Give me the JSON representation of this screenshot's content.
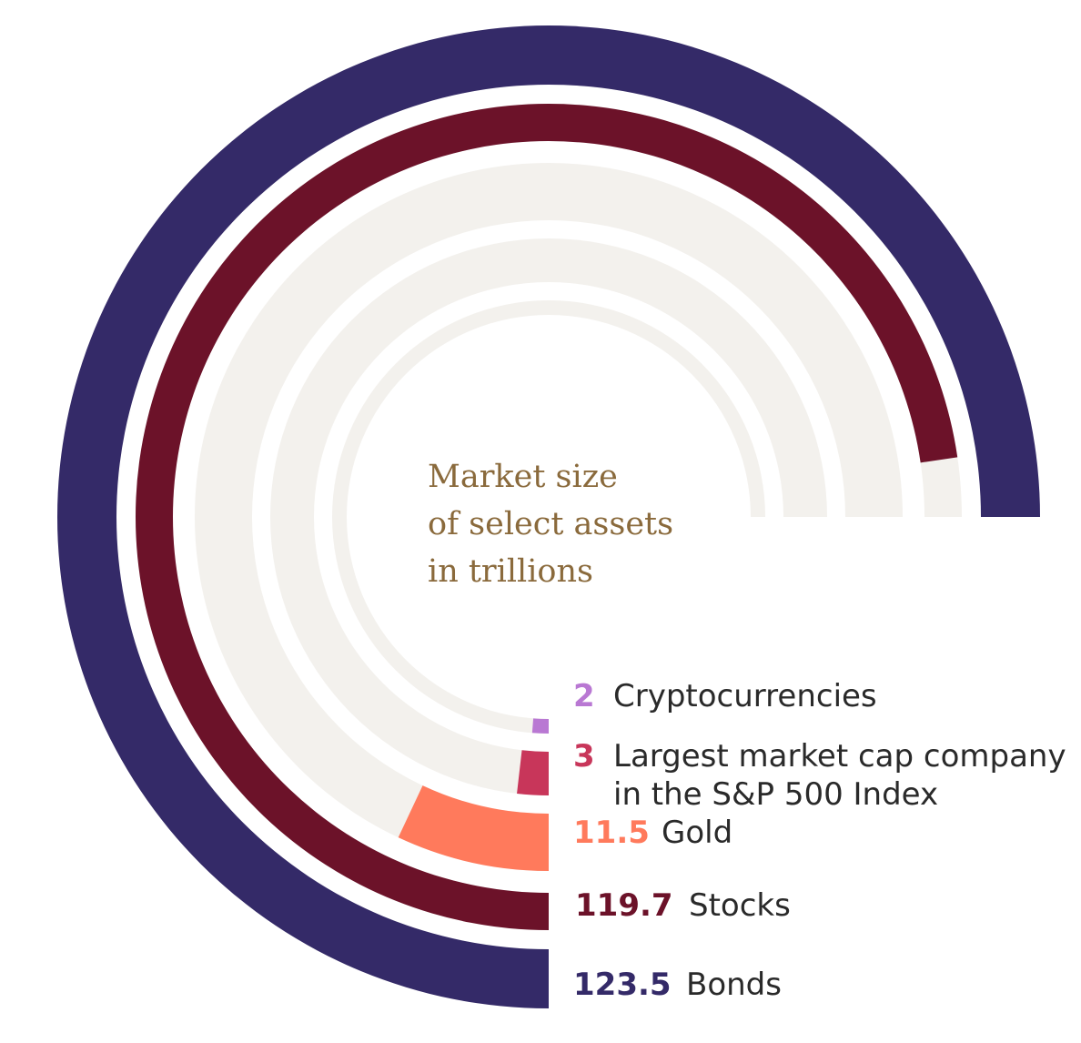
{
  "chart_data": {
    "type": "radial_bar",
    "title_lines": [
      "Market size",
      "of select assets",
      "in trillions"
    ],
    "title_color": "#8a6a3c",
    "track_color": "#f3f1ed",
    "max_value": 123.5,
    "series": [
      {
        "name": "Cryptocurrencies",
        "value": 2,
        "value_label": "2",
        "label_lines": [
          "Cryptocurrencies"
        ],
        "color": "#b978d3"
      },
      {
        "name": "Largest market cap company in the S&P 500 Index",
        "value": 3,
        "value_label": "3",
        "label_lines": [
          "Largest market cap company",
          "in the S&P 500 Index"
        ],
        "color": "#c8365a"
      },
      {
        "name": "Gold",
        "value": 11.5,
        "value_label": "11.5",
        "label_lines": [
          "Gold"
        ],
        "color": "#ff7a5c"
      },
      {
        "name": "Stocks",
        "value": 119.7,
        "value_label": "119.7",
        "label_lines": [
          "Stocks"
        ],
        "color": "#6c1229"
      },
      {
        "name": "Bonds",
        "value": 123.5,
        "value_label": "123.5",
        "label_lines": [
          "Bonds"
        ],
        "color": "#342a68"
      }
    ]
  }
}
